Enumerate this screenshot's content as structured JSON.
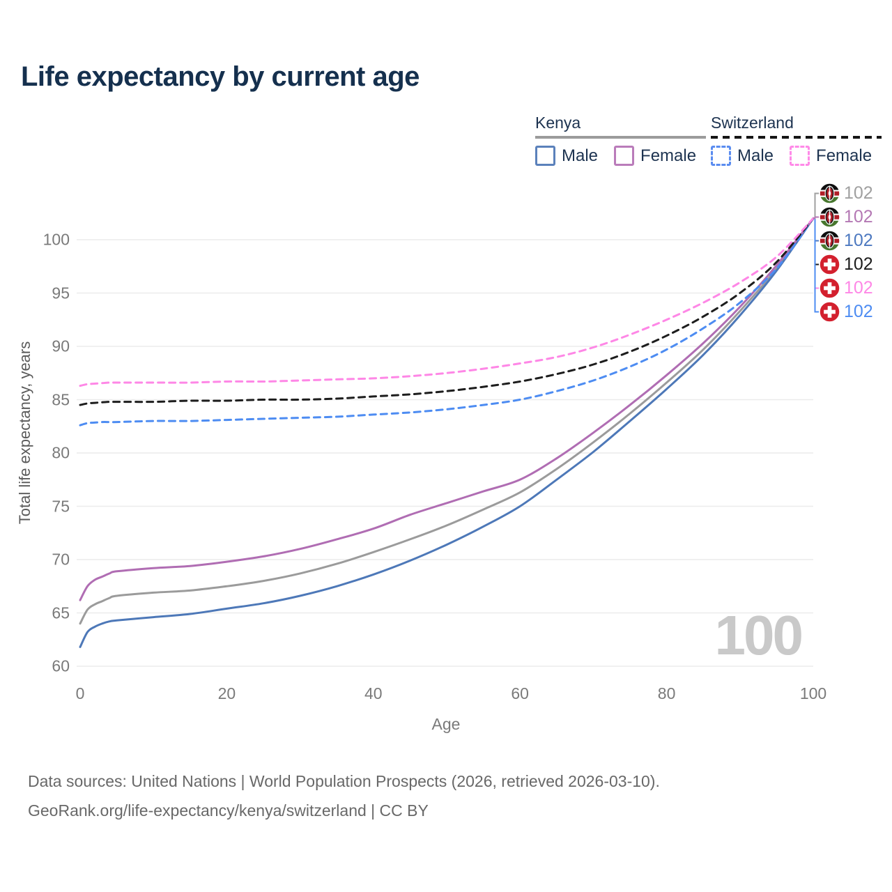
{
  "title": "Life expectancy by current age",
  "legend": {
    "kenya": {
      "label": "Kenya",
      "male": "Male",
      "female": "Female"
    },
    "switzerland": {
      "label": "Switzerland",
      "male": "Male",
      "female": "Female"
    }
  },
  "watermark": "100",
  "footer": {
    "line1": "Data sources: United Nations | World Population Prospects (2026, retrieved 2026-03-10).",
    "line2": "GeoRank.org/life-expectancy/kenya/switzerland | CC BY"
  },
  "colors": {
    "title_text": "#15304e",
    "legend_text": "#1d3350",
    "tick_text": "#7a7a7a",
    "gridline": "#ececec",
    "watermark": "#c9c9c9",
    "kenya_male": "#4d78b8",
    "kenya_female": "#b06db3",
    "kenya_both": "#9b9b9b",
    "swiss_male": "#4d8cf2",
    "swiss_female": "#fe87e6",
    "swiss_both": "#1d1d1d",
    "swiss_flag_red": "#d3202e",
    "kenya_flag_red": "#b01e28",
    "kenya_flag_green": "#47772e"
  },
  "chart_data": {
    "type": "line",
    "title": "Life expectancy by current age",
    "xlabel": "Age",
    "ylabel": "Total life expectancy, years",
    "xlim": [
      0,
      100
    ],
    "ylim": [
      60,
      103
    ],
    "x_ticks": [
      0,
      20,
      40,
      60,
      80,
      100
    ],
    "y_ticks": [
      60,
      65,
      70,
      75,
      80,
      85,
      90,
      95,
      100
    ],
    "grid": "horizontal-only",
    "legend_position": "top-right",
    "x": [
      0,
      1,
      2,
      3,
      4,
      5,
      10,
      15,
      20,
      25,
      30,
      35,
      40,
      45,
      50,
      55,
      60,
      65,
      70,
      75,
      80,
      85,
      90,
      95,
      100
    ],
    "series": [
      {
        "name": "Kenya Both sexes",
        "country": "Kenya",
        "sex": "both",
        "style": "solid",
        "color": "#9b9b9b",
        "values": [
          64.0,
          65.3,
          65.8,
          66.1,
          66.4,
          66.6,
          66.9,
          67.1,
          67.5,
          68.0,
          68.7,
          69.6,
          70.7,
          71.9,
          73.2,
          74.7,
          76.3,
          78.5,
          81.0,
          83.7,
          86.6,
          89.7,
          93.3,
          97.3,
          102
        ]
      },
      {
        "name": "Kenya Male",
        "country": "Kenya",
        "sex": "male",
        "style": "solid",
        "color": "#4d78b8",
        "values": [
          61.8,
          63.2,
          63.7,
          64.0,
          64.2,
          64.3,
          64.6,
          64.9,
          65.4,
          65.9,
          66.6,
          67.5,
          68.6,
          69.9,
          71.4,
          73.1,
          75.0,
          77.5,
          80.1,
          83.0,
          86.0,
          89.2,
          92.9,
          97.1,
          102
        ]
      },
      {
        "name": "Kenya Female",
        "country": "Kenya",
        "sex": "female",
        "style": "solid",
        "color": "#b06db3",
        "values": [
          66.2,
          67.5,
          68.1,
          68.4,
          68.7,
          68.9,
          69.2,
          69.4,
          69.8,
          70.3,
          71.0,
          71.9,
          72.9,
          74.2,
          75.3,
          76.4,
          77.5,
          79.5,
          81.9,
          84.5,
          87.3,
          90.3,
          93.7,
          97.6,
          102
        ]
      },
      {
        "name": "Switzerland Male",
        "country": "Switzerland",
        "sex": "male",
        "style": "dashed",
        "color": "#4d8cf2",
        "values": [
          82.6,
          82.8,
          82.85,
          82.9,
          82.9,
          82.9,
          83.0,
          83.0,
          83.1,
          83.2,
          83.3,
          83.4,
          83.6,
          83.8,
          84.1,
          84.5,
          85.0,
          85.8,
          86.8,
          88.1,
          89.7,
          91.7,
          94.1,
          97.3,
          102
        ]
      },
      {
        "name": "Switzerland Both sexes",
        "country": "Switzerland",
        "sex": "both",
        "style": "dashed",
        "color": "#1d1d1d",
        "values": [
          84.5,
          84.65,
          84.7,
          84.75,
          84.8,
          84.8,
          84.8,
          84.9,
          84.9,
          85.0,
          85.0,
          85.1,
          85.3,
          85.5,
          85.8,
          86.2,
          86.7,
          87.4,
          88.3,
          89.5,
          91.0,
          92.8,
          95.0,
          97.9,
          102
        ]
      },
      {
        "name": "Switzerland Female",
        "country": "Switzerland",
        "sex": "female",
        "style": "dashed",
        "color": "#fe87e6",
        "values": [
          86.3,
          86.45,
          86.5,
          86.55,
          86.6,
          86.6,
          86.6,
          86.6,
          86.7,
          86.7,
          86.8,
          86.9,
          87.0,
          87.2,
          87.5,
          87.9,
          88.4,
          89.0,
          89.9,
          91.1,
          92.5,
          94.1,
          96.0,
          98.4,
          102
        ]
      }
    ],
    "end_markers": [
      {
        "flag": "kenya",
        "series": "Kenya Both sexes",
        "label": "102",
        "color": "#a0a0a0"
      },
      {
        "flag": "kenya",
        "series": "Kenya Female",
        "label": "102",
        "color": "#b478b4"
      },
      {
        "flag": "kenya",
        "series": "Kenya Male",
        "label": "102",
        "color": "#4d79c0"
      },
      {
        "flag": "switzerland",
        "series": "Switzerland Both sexes",
        "label": "102",
        "color": "#1d1d1d"
      },
      {
        "flag": "switzerland",
        "series": "Switzerland Female",
        "label": "102",
        "color": "#fe87e6"
      },
      {
        "flag": "switzerland",
        "series": "Switzerland Male",
        "label": "102",
        "color": "#4d8cf2"
      }
    ]
  }
}
